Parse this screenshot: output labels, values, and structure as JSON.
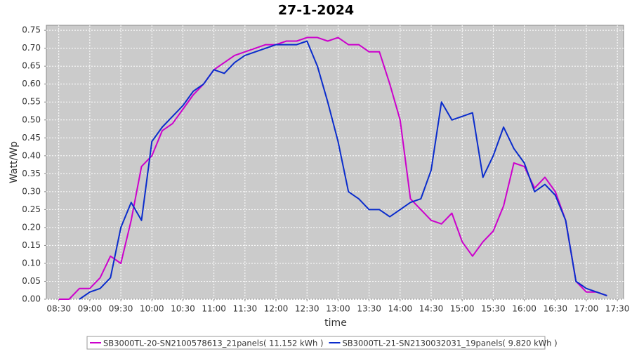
{
  "chart_data": {
    "type": "line",
    "title": "27-1-2024",
    "xlabel": "time",
    "ylabel": "Watt/Wp",
    "x": [
      "08:30",
      "08:40",
      "08:50",
      "09:00",
      "09:10",
      "09:20",
      "09:30",
      "09:40",
      "09:50",
      "10:00",
      "10:10",
      "10:20",
      "10:30",
      "10:40",
      "10:50",
      "11:00",
      "11:10",
      "11:20",
      "11:30",
      "11:40",
      "11:50",
      "12:00",
      "12:10",
      "12:20",
      "12:30",
      "12:40",
      "12:50",
      "13:00",
      "13:10",
      "13:20",
      "13:30",
      "13:40",
      "13:50",
      "14:00",
      "14:10",
      "14:20",
      "14:30",
      "14:40",
      "14:50",
      "15:00",
      "15:10",
      "15:20",
      "15:30",
      "15:40",
      "15:50",
      "16:00",
      "16:10",
      "16:20",
      "16:30",
      "16:40",
      "16:50",
      "17:00",
      "17:10",
      "17:20"
    ],
    "series": [
      {
        "name": "SB3000TL-20-SN2100578613_21panels( 11.152 kWh )",
        "color": "#cc00cc",
        "values": [
          0,
          0,
          0.03,
          0.03,
          0.06,
          0.12,
          0.1,
          0.22,
          0.37,
          0.4,
          0.47,
          0.49,
          0.53,
          0.57,
          0.6,
          0.64,
          0.66,
          0.68,
          0.69,
          0.7,
          0.71,
          0.71,
          0.72,
          0.72,
          0.73,
          0.73,
          0.72,
          0.73,
          0.71,
          0.71,
          0.69,
          0.69,
          0.6,
          0.5,
          0.28,
          0.25,
          0.22,
          0.21,
          0.24,
          0.16,
          0.12,
          0.16,
          0.19,
          0.26,
          0.38,
          0.37,
          0.31,
          0.34,
          0.3,
          0.22,
          0.05,
          0.02,
          0.02,
          0.01
        ]
      },
      {
        "name": "SB3000TL-21-SN2130032031_19panels( 9.820 kWh )",
        "color": "#0a2ccc",
        "values": [
          null,
          null,
          0,
          0.02,
          0.03,
          0.06,
          0.2,
          0.27,
          0.22,
          0.44,
          0.48,
          0.51,
          0.54,
          0.58,
          0.6,
          0.64,
          0.63,
          0.66,
          0.68,
          0.69,
          0.7,
          0.71,
          0.71,
          0.71,
          0.72,
          0.65,
          0.55,
          0.44,
          0.3,
          0.28,
          0.25,
          0.25,
          0.23,
          0.25,
          0.27,
          0.28,
          0.36,
          0.55,
          0.5,
          0.51,
          0.52,
          0.34,
          0.4,
          0.48,
          0.42,
          0.38,
          0.3,
          0.32,
          0.29,
          0.22,
          0.05,
          0.03,
          0.02,
          0.01
        ]
      }
    ],
    "xlim": [
      "08:18",
      "17:36"
    ],
    "xticks": [
      "08:30",
      "09:00",
      "09:30",
      "10:00",
      "10:30",
      "11:00",
      "11:30",
      "12:00",
      "12:30",
      "13:00",
      "13:30",
      "14:00",
      "14:30",
      "15:00",
      "15:30",
      "16:00",
      "16:30",
      "17:00",
      "17:30"
    ],
    "ylim": [
      0,
      0.764
    ],
    "yticks": [
      {
        "value": 0,
        "label": "0.00"
      },
      0.05,
      {
        "value": 0.1,
        "label": "0.10"
      },
      0.15,
      {
        "value": 0.2,
        "label": "0.20"
      },
      0.25,
      {
        "value": 0.3,
        "label": "0.30"
      },
      0.35,
      {
        "value": 0.4,
        "label": "0.40"
      },
      0.45,
      {
        "value": 0.5,
        "label": "0.50"
      },
      0.55,
      {
        "value": 0.6,
        "label": "0.60"
      },
      0.65,
      {
        "value": 0.7,
        "label": "0.70"
      },
      0.75
    ],
    "grid": true
  }
}
